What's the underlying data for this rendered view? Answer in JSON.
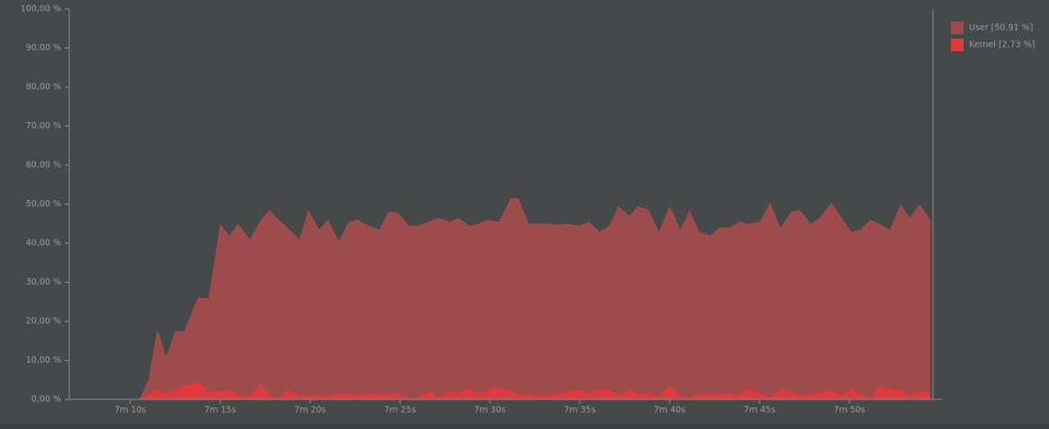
{
  "chart_data": {
    "type": "area",
    "x": [
      430,
      430.5,
      431,
      431.5,
      432,
      432.5,
      433,
      433.75,
      434.35,
      435,
      435.5,
      436,
      436.65,
      437.25,
      437.75,
      438.25,
      438.75,
      439.4,
      439.9,
      440.5,
      441,
      441.6,
      442.15,
      442.65,
      443.25,
      443.85,
      444.35,
      444.85,
      445.5,
      446,
      446.6,
      447.15,
      447.75,
      448.25,
      448.85,
      449.35,
      449.85,
      450.5,
      451.15,
      451.6,
      452.15,
      452.75,
      453.25,
      453.85,
      454.35,
      455,
      455.5,
      456.1,
      456.65,
      457.15,
      457.75,
      458.25,
      458.85,
      459.4,
      460,
      460.6,
      461.1,
      461.65,
      462.25,
      462.75,
      463.35,
      463.85,
      464.4,
      465,
      465.6,
      466.15,
      466.75,
      467.25,
      467.85,
      468.35,
      469,
      469.5,
      470.1,
      470.6,
      471.15,
      471.65,
      472.25,
      472.85,
      473.35,
      473.9,
      474.5
    ],
    "series": [
      {
        "name": "User [50,91 %]",
        "color": "#9e4b4b",
        "values": [
          0,
          0,
          5,
          18,
          11,
          17.5,
          17.5,
          26,
          26,
          45,
          42,
          45,
          41,
          46,
          48.5,
          46,
          44,
          41,
          48.5,
          43.5,
          46,
          40.5,
          45.5,
          46,
          44.5,
          43.5,
          48,
          48,
          44.5,
          44.5,
          45.5,
          46.5,
          45.5,
          46.5,
          44.5,
          45,
          46,
          45.5,
          51.5,
          51.5,
          45,
          45,
          45,
          44.8,
          45,
          44.5,
          45.5,
          43,
          44.5,
          49.5,
          47,
          49.5,
          48.5,
          43,
          49.5,
          43.5,
          48.5,
          43,
          42,
          44,
          44,
          45.5,
          45,
          45.5,
          50.5,
          44,
          48,
          48.5,
          45,
          46.5,
          50.5,
          47,
          43,
          43.5,
          46,
          45,
          43.5,
          50,
          46.5,
          50,
          46
        ]
      },
      {
        "name": "Kernel [2,73 %]",
        "color": "#e0393e",
        "values": [
          0,
          0,
          1.5,
          2.5,
          1.5,
          2.5,
          3.5,
          4.5,
          2,
          2,
          2.5,
          1,
          1,
          4,
          1,
          0.3,
          2.5,
          1,
          1,
          1,
          1,
          1.5,
          1.5,
          1,
          1.5,
          1.5,
          1.5,
          1.5,
          0.3,
          0.5,
          2,
          0.5,
          2,
          1.5,
          3,
          1,
          2.5,
          3,
          2.5,
          1,
          1.5,
          1,
          1,
          1.5,
          2,
          2.5,
          1.5,
          2.5,
          2.5,
          1,
          2.5,
          1.5,
          1.5,
          0.5,
          3.5,
          1,
          0.3,
          1.5,
          1.5,
          1.5,
          1.5,
          1,
          3,
          1.5,
          0.5,
          2.5,
          1.5,
          1,
          1.5,
          1.5,
          2.5,
          1,
          2.5,
          1.5,
          0.3,
          3.5,
          2.5,
          2.5,
          1,
          2,
          1.5
        ]
      }
    ],
    "xlim": [
      426.6,
      474.65
    ],
    "xticks": [
      {
        "value": 430,
        "label": "7m 10s"
      },
      {
        "value": 435,
        "label": "7m 15s"
      },
      {
        "value": 440,
        "label": "7m 20s"
      },
      {
        "value": 445,
        "label": "7m 25s"
      },
      {
        "value": 450,
        "label": "7m 30s"
      },
      {
        "value": 455,
        "label": "7m 35s"
      },
      {
        "value": 460,
        "label": "7m 40s"
      },
      {
        "value": 465,
        "label": "7m 45s"
      },
      {
        "value": 470,
        "label": "7m 50s"
      }
    ],
    "ylim": [
      0,
      100
    ],
    "yticks": [
      {
        "value": 0,
        "label": "0,00 %"
      },
      {
        "value": 10,
        "label": "10,00 %"
      },
      {
        "value": 20,
        "label": "20,00 %"
      },
      {
        "value": 30,
        "label": "30,00 %"
      },
      {
        "value": 40,
        "label": "40,00 %"
      },
      {
        "value": 50,
        "label": "50,00 %"
      },
      {
        "value": 60,
        "label": "60,00 %"
      },
      {
        "value": 70,
        "label": "70,00 %"
      },
      {
        "value": 80,
        "label": "80,00 %"
      },
      {
        "value": 90,
        "label": "90,00 %"
      },
      {
        "value": 100,
        "label": "100,00 %"
      }
    ],
    "legend": "top-right"
  }
}
